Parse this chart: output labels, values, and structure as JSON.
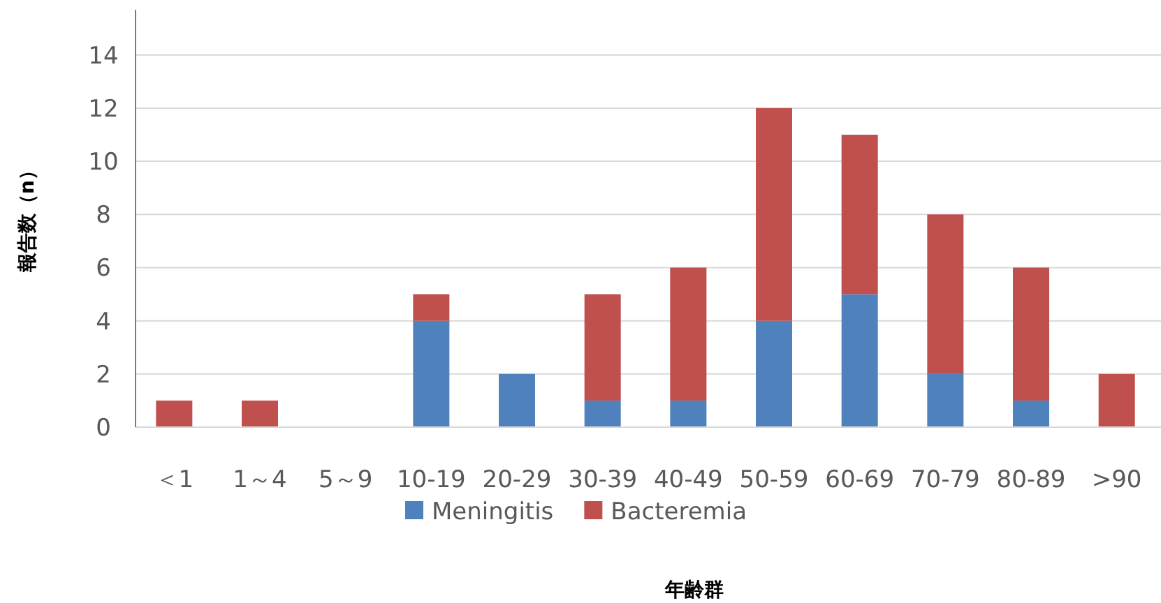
{
  "chart_data": {
    "type": "bar",
    "stacked": true,
    "xlabel": "年齢群",
    "ylabel": "報告数（n）",
    "categories": [
      "＜1",
      "1～4",
      "5～9",
      "10-19",
      "20-29",
      "30-39",
      "40-49",
      "50-59",
      "60-69",
      "70-79",
      "80-89",
      ">90"
    ],
    "series": [
      {
        "name": "Meningitis",
        "color": "#4f81bd",
        "values": [
          0,
          0,
          0,
          4,
          2,
          1,
          1,
          4,
          5,
          2,
          1,
          0
        ]
      },
      {
        "name": "Bacteremia",
        "color": "#c0504d",
        "values": [
          1,
          1,
          0,
          1,
          0,
          4,
          5,
          8,
          6,
          6,
          5,
          2
        ]
      }
    ],
    "ylim": [
      0,
      15.7
    ],
    "yticks": [
      0,
      2,
      4,
      6,
      8,
      10,
      12,
      14
    ],
    "grid": "y",
    "legend": "bottom"
  }
}
